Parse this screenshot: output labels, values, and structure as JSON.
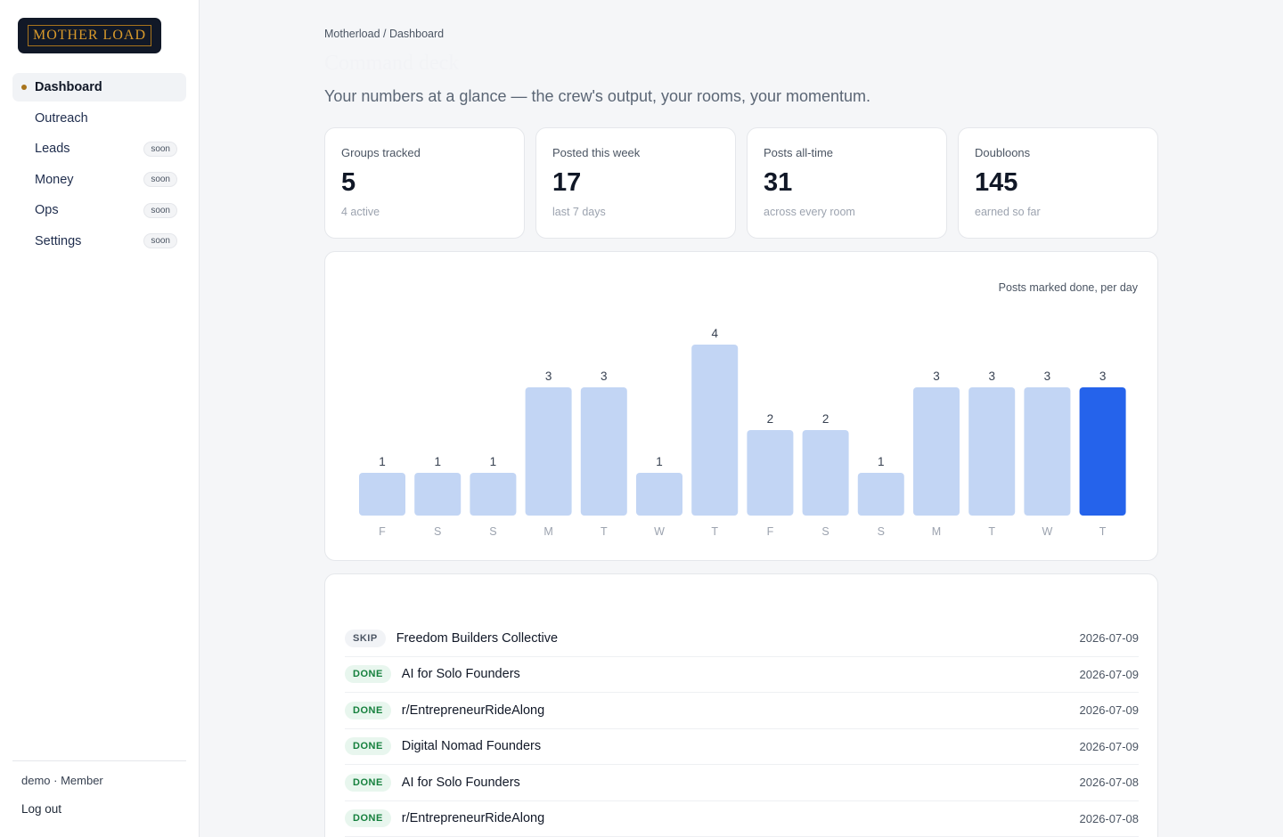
{
  "brand": {
    "logo_text": "MOTHER LOAD"
  },
  "sidebar": {
    "items": [
      {
        "label": "Dashboard",
        "active": true,
        "badge": ""
      },
      {
        "label": "Outreach",
        "active": false,
        "badge": ""
      },
      {
        "label": "Leads",
        "active": false,
        "badge": "soon"
      },
      {
        "label": "Money",
        "active": false,
        "badge": "soon"
      },
      {
        "label": "Ops",
        "active": false,
        "badge": "soon"
      },
      {
        "label": "Settings",
        "active": false,
        "badge": "soon"
      }
    ],
    "user": "demo · Member",
    "logout": "Log out"
  },
  "header": {
    "breadcrumb": "Motherload / Dashboard",
    "title": "Command deck",
    "subtitle": "Your numbers at a glance — the crew's output, your rooms, your momentum."
  },
  "stats": [
    {
      "label": "Groups tracked",
      "value": "5",
      "sub": "4 active"
    },
    {
      "label": "Posted this week",
      "value": "17",
      "sub": "last 7 days"
    },
    {
      "label": "Posts all-time",
      "value": "31",
      "sub": "across every room"
    },
    {
      "label": "Doubloons",
      "value": "145",
      "sub": "earned so far"
    }
  ],
  "chart": {
    "note": "Posts marked done, per day",
    "accent": "#2563eb",
    "muted": "#c2d5f4"
  },
  "chart_data": {
    "type": "bar",
    "categories": [
      "F",
      "S",
      "S",
      "M",
      "T",
      "W",
      "T",
      "F",
      "S",
      "S",
      "M",
      "T",
      "W",
      "T"
    ],
    "values": [
      1,
      1,
      1,
      3,
      3,
      1,
      4,
      2,
      2,
      1,
      3,
      3,
      3,
      3
    ],
    "highlight_index": 13,
    "title": "",
    "xlabel": "",
    "ylabel": "",
    "ylim": [
      0,
      4
    ]
  },
  "activity": {
    "rows": [
      {
        "status": "SKIP",
        "kind": "skip",
        "name": "Freedom Builders Collective",
        "date": "2026-07-09"
      },
      {
        "status": "DONE",
        "kind": "done",
        "name": "AI for Solo Founders",
        "date": "2026-07-09"
      },
      {
        "status": "DONE",
        "kind": "done",
        "name": "r/EntrepreneurRideAlong",
        "date": "2026-07-09"
      },
      {
        "status": "DONE",
        "kind": "done",
        "name": "Digital Nomad Founders",
        "date": "2026-07-09"
      },
      {
        "status": "DONE",
        "kind": "done",
        "name": "AI for Solo Founders",
        "date": "2026-07-08"
      },
      {
        "status": "DONE",
        "kind": "done",
        "name": "r/EntrepreneurRideAlong",
        "date": "2026-07-08"
      }
    ]
  }
}
